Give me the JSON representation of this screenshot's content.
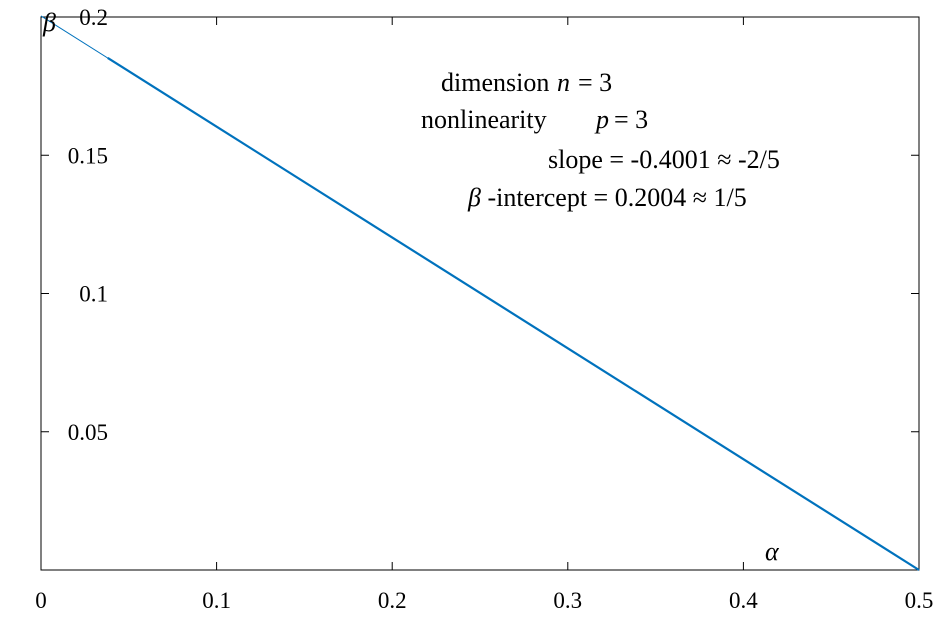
{
  "chart_data": {
    "type": "line",
    "title": "",
    "xlabel": "α",
    "ylabel": "β",
    "xlim": [
      0,
      0.5
    ],
    "ylim": [
      0,
      0.2
    ],
    "x_ticks": [
      0,
      0.1,
      0.2,
      0.3,
      0.4,
      0.5
    ],
    "x_tick_labels": [
      "0",
      "0.1",
      "0.2",
      "0.3",
      "0.4",
      "0.5"
    ],
    "y_ticks": [
      0.05,
      0.1,
      0.15,
      0.2
    ],
    "y_tick_labels": [
      "0.05",
      "0.1",
      "0.15",
      "0.2"
    ],
    "grid": false,
    "series": [
      {
        "color": "#0072BD",
        "x": [
          0,
          0.5
        ],
        "y": [
          0.2004,
          0.0
        ]
      },
      {
        "color": "#0072BD",
        "x": [
          0.038,
          0.5
        ],
        "y": [
          0.1852,
          0.0
        ]
      }
    ],
    "annotations": {
      "line1_prefix": "dimension",
      "line1_var": "n",
      "line1_value": "=  3",
      "line2_prefix": "nonlinearity",
      "line2_var": "p",
      "line2_value": "=  3",
      "line3": "slope = -0.4001 ≈ -2/5",
      "line4_var": "β",
      "line4_rest": "-intercept =  0.2004 ≈  1/5"
    }
  }
}
